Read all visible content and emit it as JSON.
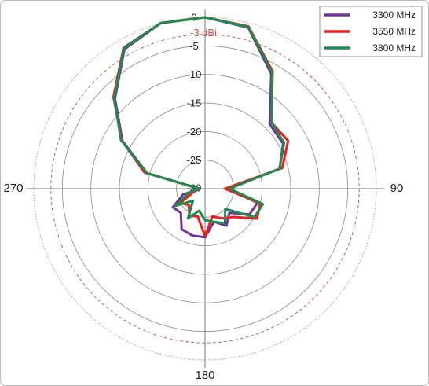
{
  "chart_data": {
    "type": "polar",
    "theta": [
      0,
      15,
      30,
      45,
      60,
      75,
      90,
      105,
      120,
      135,
      150,
      165,
      180,
      195,
      210,
      225,
      240,
      255,
      270,
      285,
      300,
      315,
      330,
      345
    ],
    "series": [
      {
        "name": "3300 MHz",
        "color": "#7030a0",
        "values": [
          0,
          -0.8,
          -6.8,
          -14,
          -14.2,
          -16.5,
          -26,
          -20.5,
          -21,
          -24,
          -22.5,
          -24,
          -21.5,
          -21.5,
          -21.8,
          -24,
          -23.5,
          -26,
          -29,
          -19.5,
          -13.3,
          -7.7,
          -1.8,
          0
        ]
      },
      {
        "name": "3550 MHz",
        "color": "#ee1c1c",
        "values": [
          0,
          -0.6,
          -6.3,
          -13.6,
          -13.2,
          -16,
          -26.5,
          -20,
          -19.5,
          -23,
          -24,
          -25,
          -21.7,
          -25,
          -24.5,
          -26,
          -25,
          -28,
          -29,
          -19,
          -13.2,
          -7.3,
          -1.5,
          0
        ]
      },
      {
        "name": "3800 MHz",
        "color": "#1e8c4c",
        "values": [
          0,
          -0.7,
          -6.5,
          -13.5,
          -14,
          -16.5,
          -25.7,
          -19.5,
          -20,
          -25,
          -23,
          -24,
          -24.5,
          -26,
          -24,
          -27,
          -24,
          -27,
          -29,
          -19.5,
          -13,
          -7.5,
          -1.6,
          0
        ]
      }
    ],
    "rlim": [
      -30,
      0
    ],
    "rticks": [
      -30,
      -25,
      -20,
      -15,
      -10,
      -5,
      0
    ],
    "reference": {
      "value": -3,
      "label": "-3 dBi",
      "color": "#c0504d"
    },
    "angle_ticks": [
      90,
      180,
      270
    ],
    "legend": "top-right",
    "grid": true
  }
}
